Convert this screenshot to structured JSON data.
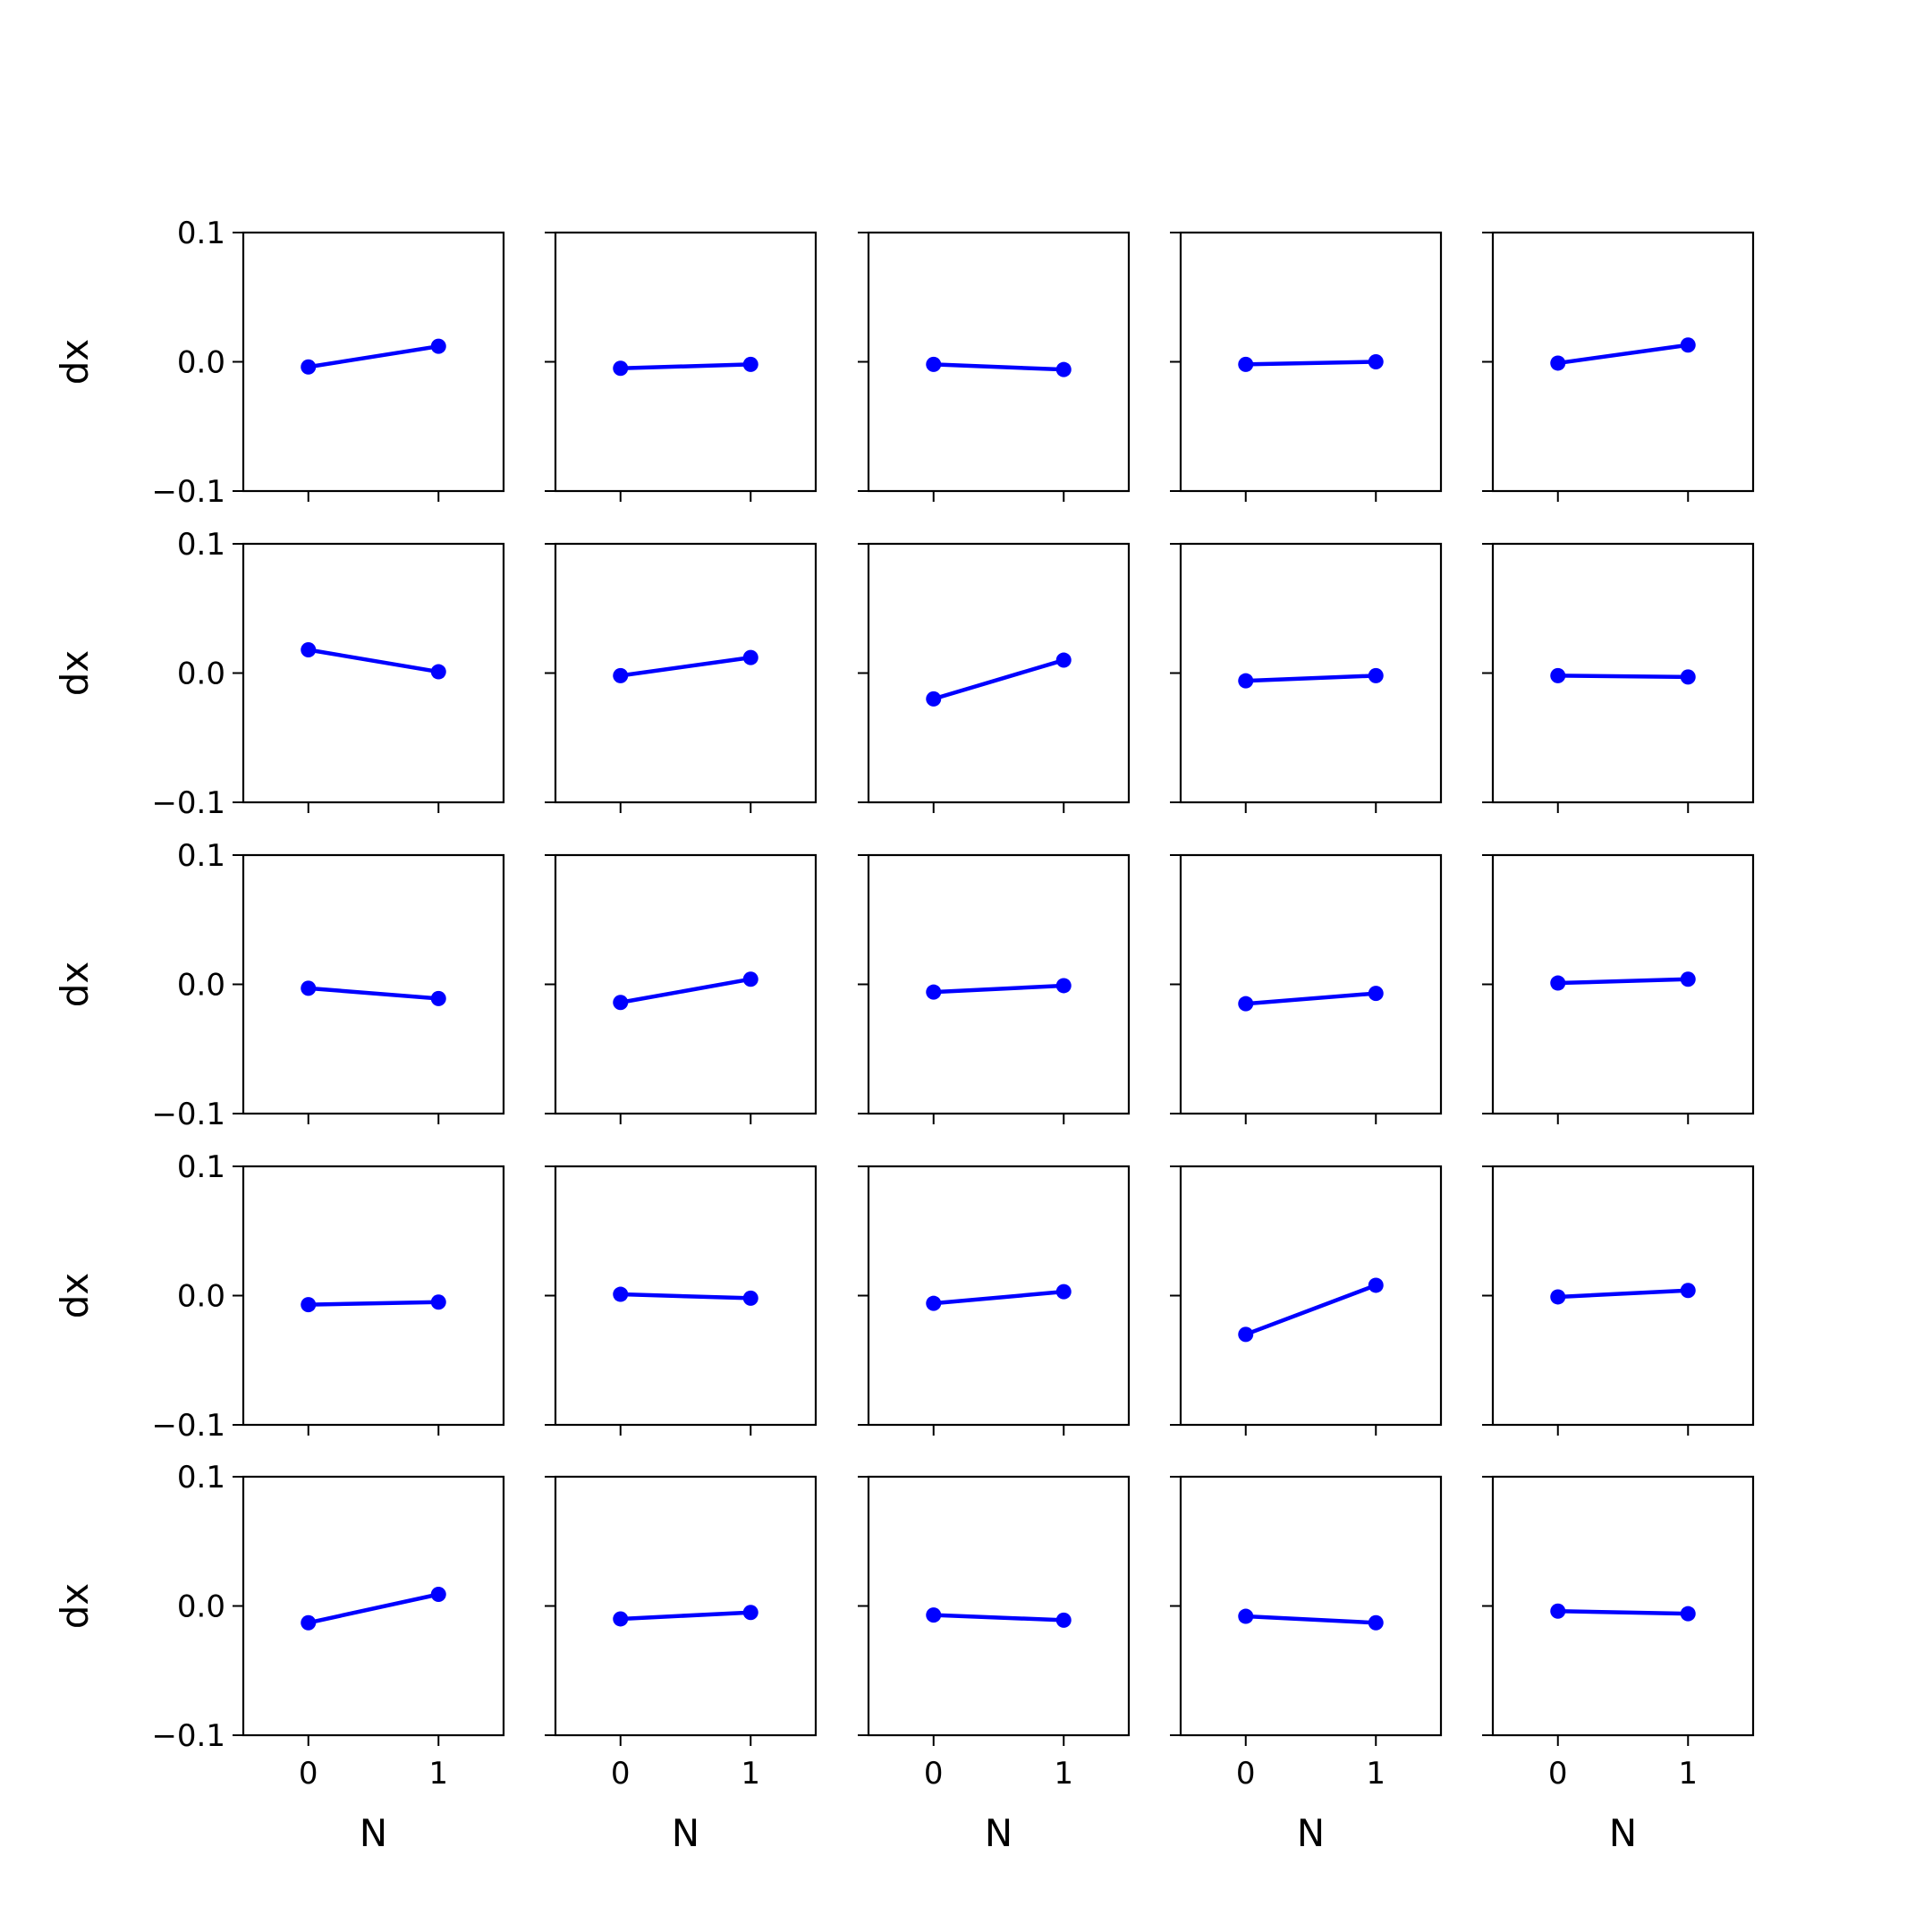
{
  "chart_data": {
    "type": "line",
    "layout": {
      "rows": 5,
      "cols": 5
    },
    "xlabel": "N",
    "ylabel": "dx",
    "x": [
      0,
      1
    ],
    "x_ticks": [
      "0",
      "1"
    ],
    "xlim": [
      -0.5,
      1.5
    ],
    "y_ticks": [
      "0.1",
      "0.0",
      "−0.1"
    ],
    "ylim": [
      -0.1,
      0.1
    ],
    "grid": false,
    "legend": "none",
    "line_color": "#0000ff",
    "marker": "circle",
    "panels": [
      {
        "row": 1,
        "col": 1,
        "values": [
          -0.004,
          0.012
        ]
      },
      {
        "row": 1,
        "col": 2,
        "values": [
          -0.005,
          -0.002
        ]
      },
      {
        "row": 1,
        "col": 3,
        "values": [
          -0.002,
          -0.006
        ]
      },
      {
        "row": 1,
        "col": 4,
        "values": [
          -0.002,
          0.0
        ]
      },
      {
        "row": 1,
        "col": 5,
        "values": [
          -0.001,
          0.013
        ]
      },
      {
        "row": 2,
        "col": 1,
        "values": [
          0.018,
          0.001
        ]
      },
      {
        "row": 2,
        "col": 2,
        "values": [
          -0.002,
          0.012
        ]
      },
      {
        "row": 2,
        "col": 3,
        "values": [
          -0.02,
          0.01
        ]
      },
      {
        "row": 2,
        "col": 4,
        "values": [
          -0.006,
          -0.002
        ]
      },
      {
        "row": 2,
        "col": 5,
        "values": [
          -0.002,
          -0.003
        ]
      },
      {
        "row": 3,
        "col": 1,
        "values": [
          -0.003,
          -0.011
        ]
      },
      {
        "row": 3,
        "col": 2,
        "values": [
          -0.014,
          0.004
        ]
      },
      {
        "row": 3,
        "col": 3,
        "values": [
          -0.006,
          -0.001
        ]
      },
      {
        "row": 3,
        "col": 4,
        "values": [
          -0.015,
          -0.007
        ]
      },
      {
        "row": 3,
        "col": 5,
        "values": [
          0.001,
          0.004
        ]
      },
      {
        "row": 4,
        "col": 1,
        "values": [
          -0.007,
          -0.005
        ]
      },
      {
        "row": 4,
        "col": 2,
        "values": [
          0.001,
          -0.002
        ]
      },
      {
        "row": 4,
        "col": 3,
        "values": [
          -0.006,
          0.003
        ]
      },
      {
        "row": 4,
        "col": 4,
        "values": [
          -0.03,
          0.008
        ]
      },
      {
        "row": 4,
        "col": 5,
        "values": [
          -0.001,
          0.004
        ]
      },
      {
        "row": 5,
        "col": 1,
        "values": [
          -0.013,
          0.009
        ]
      },
      {
        "row": 5,
        "col": 2,
        "values": [
          -0.01,
          -0.005
        ]
      },
      {
        "row": 5,
        "col": 3,
        "values": [
          -0.007,
          -0.011
        ]
      },
      {
        "row": 5,
        "col": 4,
        "values": [
          -0.008,
          -0.013
        ]
      },
      {
        "row": 5,
        "col": 5,
        "values": [
          -0.004,
          -0.006
        ]
      }
    ]
  }
}
